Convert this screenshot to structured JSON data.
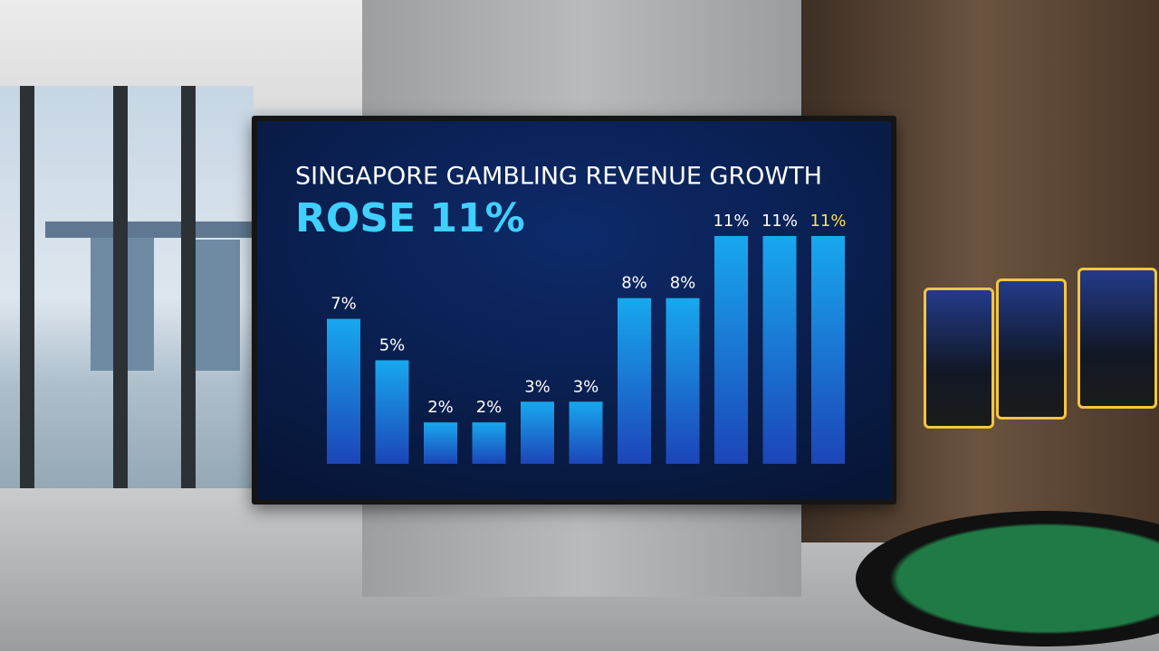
{
  "chart_data": {
    "type": "bar",
    "title": "SINGAPORE GAMBLING REVENUE GROWTH",
    "subtitle": "ROSE 11%",
    "values": [
      7,
      5,
      2,
      2,
      3,
      3,
      8,
      8,
      11,
      11,
      11
    ],
    "value_labels": [
      "7%",
      "5%",
      "2%",
      "2%",
      "3%",
      "3%",
      "8%",
      "8%",
      "11%",
      "11%",
      "11%"
    ],
    "color": "#18a8ee",
    "label_color": "#ffffff",
    "highlight_label_color": "#ffe14d"
  }
}
